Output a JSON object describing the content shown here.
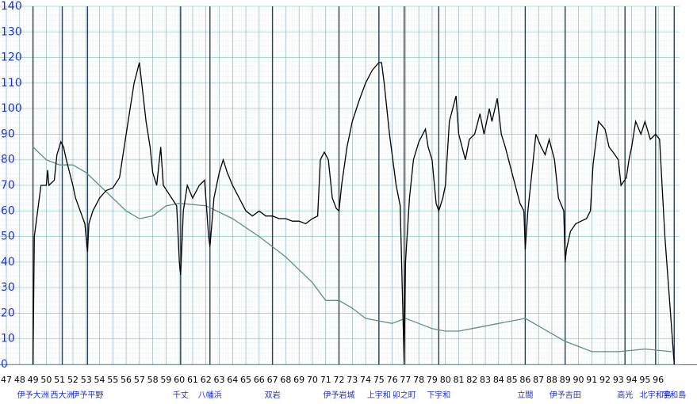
{
  "chart_data": {
    "type": "line",
    "xlim": [
      46.52,
      97.6
    ],
    "ylim": [
      0,
      140
    ],
    "xticks": [
      47,
      48,
      49,
      50,
      51,
      52,
      53,
      54,
      55,
      56,
      57,
      58,
      59,
      60,
      61,
      62,
      63,
      64,
      65,
      66,
      67,
      68,
      69,
      70,
      71,
      72,
      73,
      74,
      75,
      76,
      77,
      78,
      79,
      80,
      81,
      82,
      83,
      84,
      85,
      86,
      87,
      88,
      89,
      90,
      91,
      92,
      93,
      94,
      95,
      96
    ],
    "yticks": [
      0,
      10,
      20,
      30,
      40,
      50,
      60,
      70,
      80,
      90,
      100,
      110,
      120,
      130,
      140
    ],
    "grid": true,
    "series": [
      {
        "color": "#5f8f88",
        "x": [
          49,
          50,
          51,
          52,
          53,
          54,
          55,
          56,
          57,
          58,
          59,
          60,
          62,
          64,
          66,
          68,
          70,
          71,
          72,
          73,
          74,
          75,
          76,
          77,
          78,
          79,
          80,
          81,
          82,
          84,
          86,
          87,
          88,
          89,
          90,
          91,
          93,
          95,
          97
        ],
        "values": [
          85,
          80,
          78,
          78,
          75,
          70,
          65,
          60,
          57,
          58,
          62,
          63,
          62,
          57,
          50,
          42,
          32,
          25,
          25,
          22,
          18,
          17,
          16,
          18,
          16,
          14,
          13,
          13,
          14,
          16,
          18,
          15,
          12,
          9,
          7,
          5,
          5,
          6,
          5
        ]
      },
      {
        "color": "#000000",
        "x": [
          49.0,
          49.1,
          49.4,
          49.6,
          50.0,
          50.1,
          50.2,
          50.6,
          50.8,
          51.1,
          51.3,
          51.5,
          52.0,
          52.2,
          52.9,
          53.1,
          53.2,
          53.5,
          54.0,
          54.5,
          55.0,
          55.5,
          56.0,
          56.3,
          56.6,
          57.0,
          57.5,
          57.8,
          58.0,
          58.3,
          58.6,
          58.8,
          59.8,
          60.0,
          60.1,
          60.3,
          60.6,
          61.0,
          61.5,
          61.9,
          62.2,
          62.3,
          62.6,
          63.0,
          63.3,
          63.6,
          64.0,
          64.5,
          65.0,
          65.5,
          66.0,
          66.5,
          67.0,
          67.5,
          68.0,
          68.5,
          69.0,
          69.5,
          70.0,
          70.4,
          70.6,
          70.9,
          71.2,
          71.5,
          71.8,
          72.0,
          72.2,
          72.6,
          73.0,
          73.5,
          74.0,
          74.5,
          75.0,
          75.2,
          75.4,
          75.8,
          76.3,
          76.6,
          76.9,
          77.0,
          77.3,
          77.6,
          78.0,
          78.5,
          78.7,
          79.0,
          79.3,
          79.5,
          79.8,
          80.0,
          80.3,
          80.8,
          81.0,
          81.5,
          81.8,
          82.2,
          82.6,
          82.9,
          83.3,
          83.5,
          83.9,
          84.2,
          84.5,
          85.0,
          85.6,
          85.9,
          86.0,
          86.2,
          86.5,
          86.8,
          87.2,
          87.5,
          87.8,
          88.2,
          88.5,
          88.9,
          89.0,
          89.1,
          89.4,
          89.8,
          90.2,
          90.6,
          90.9,
          91.1,
          91.5,
          92.0,
          92.3,
          92.6,
          93.0,
          93.2,
          93.6,
          93.8,
          94.0,
          94.3,
          94.7,
          95.0,
          95.4,
          95.8,
          96.1,
          96.5,
          97.2
        ],
        "values": [
          0,
          50,
          62,
          70,
          70,
          76,
          70,
          72,
          82,
          87,
          85,
          80,
          70,
          65,
          55,
          44,
          55,
          60,
          65,
          68,
          69,
          73,
          90,
          100,
          110,
          118,
          95,
          85,
          75,
          70,
          85,
          70,
          62,
          40,
          35,
          60,
          70,
          65,
          70,
          72,
          50,
          46,
          65,
          75,
          80,
          75,
          70,
          65,
          60,
          58,
          60,
          58,
          58,
          57,
          57,
          56,
          56,
          55,
          57,
          58,
          80,
          83,
          80,
          65,
          61,
          60,
          70,
          85,
          95,
          103,
          110,
          115,
          118,
          118,
          110,
          90,
          70,
          62,
          0,
          40,
          65,
          80,
          87,
          92,
          85,
          80,
          63,
          60,
          65,
          70,
          95,
          105,
          90,
          80,
          88,
          90,
          98,
          90,
          100,
          95,
          104,
          90,
          85,
          75,
          63,
          60,
          45,
          60,
          75,
          90,
          85,
          82,
          88,
          80,
          65,
          60,
          40,
          45,
          52,
          55,
          56,
          57,
          60,
          78,
          95,
          92,
          85,
          83,
          80,
          70,
          73,
          80,
          85,
          95,
          90,
          95,
          88,
          90,
          88,
          50,
          0
        ]
      }
    ],
    "stations": [
      {
        "label": "伊予大洲",
        "km": 49.0
      },
      {
        "label": "西大洲",
        "km": 51.2
      },
      {
        "label": "伊予平野",
        "km": 53.1
      },
      {
        "label": "千丈",
        "km": 60.1
      },
      {
        "label": "八幡浜",
        "km": 62.3
      },
      {
        "label": "双岩",
        "km": 67.0
      },
      {
        "label": "伊予岩城",
        "km": 72.0
      },
      {
        "label": "上宇和",
        "km": 75.0
      },
      {
        "label": "卯之町",
        "km": 76.9
      },
      {
        "label": "下宇和",
        "km": 79.5
      },
      {
        "label": "立間",
        "km": 86.0
      },
      {
        "label": "伊予吉田",
        "km": 89.0
      },
      {
        "label": "高光",
        "km": 93.5
      },
      {
        "label": "北宇和島",
        "km": 95.8
      },
      {
        "label": "宇和島",
        "km": 97.2
      }
    ]
  }
}
